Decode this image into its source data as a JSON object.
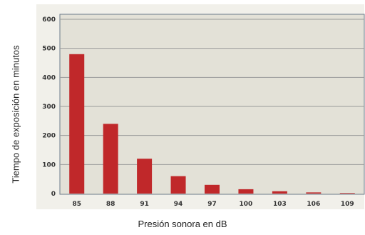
{
  "chart_data": {
    "type": "bar",
    "title": "",
    "xlabel": "Presión sonora en dB",
    "ylabel": "Tiempo de exposición en minutos",
    "categories": [
      "85",
      "88",
      "91",
      "94",
      "97",
      "100",
      "103",
      "106",
      "109"
    ],
    "values": [
      480,
      240,
      120,
      60,
      30,
      15,
      8,
      4,
      2
    ],
    "ylim": [
      0,
      600
    ],
    "yticks": [
      0,
      100,
      200,
      300,
      400,
      500,
      600
    ],
    "grid": true,
    "colors": {
      "bar": "#c0282a",
      "plot_bg": "#e3e1d7",
      "panel_bg": "#f1f0ea",
      "grid": "#9a9a9a",
      "border": "#6b7a8a"
    }
  }
}
